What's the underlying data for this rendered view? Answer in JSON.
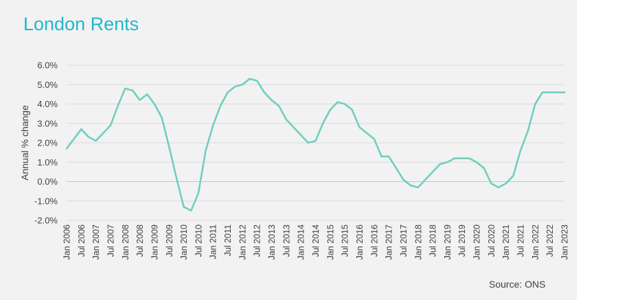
{
  "title": "London Rents",
  "source": "Source: ONS",
  "chart_data": {
    "type": "line",
    "title": "London Rents",
    "xlabel": "",
    "ylabel": "Annual % change",
    "ylim": [
      -2.0,
      6.0
    ],
    "yticks": [
      "6.0%",
      "5.0%",
      "4.0%",
      "3.0%",
      "2.0%",
      "1.0%",
      "0.0%",
      "-1.0%",
      "-2.0%"
    ],
    "ytick_values": [
      6,
      5,
      4,
      3,
      2,
      1,
      0,
      -1,
      -2
    ],
    "xticks": [
      "Jan 2006",
      "Jul 2006",
      "Jan 2007",
      "Jul 2007",
      "Jan 2008",
      "Jul 2008",
      "Jan 2009",
      "Jul 2009",
      "Jan 2010",
      "Jul 2010",
      "Jan 2011",
      "Jul 2011",
      "Jan 2012",
      "Jul 2012",
      "Jan 2013",
      "Jul 2013",
      "Jan 2014",
      "Jul 2014",
      "Jan 2015",
      "Jul 2015",
      "Jan 2016",
      "Jul 2016",
      "Jan 2017",
      "Jul 2017",
      "Jan 2018",
      "Jul 2018",
      "Jan 2019",
      "Jul 2019",
      "Jan 2020",
      "Jul 2020",
      "Jan 2021",
      "Jul 2021",
      "Jan 2022",
      "Jul 2022",
      "Jan 2023"
    ],
    "grid": "horizontal",
    "line_color": "#6fcfbf",
    "series": [
      {
        "name": "",
        "x": [
          "2006-01",
          "2006-04",
          "2006-07",
          "2006-10",
          "2007-01",
          "2007-04",
          "2007-07",
          "2007-10",
          "2008-01",
          "2008-04",
          "2008-07",
          "2008-10",
          "2009-01",
          "2009-04",
          "2009-07",
          "2009-10",
          "2010-01",
          "2010-04",
          "2010-07",
          "2010-10",
          "2011-01",
          "2011-04",
          "2011-07",
          "2011-10",
          "2012-01",
          "2012-04",
          "2012-07",
          "2012-10",
          "2013-01",
          "2013-04",
          "2013-07",
          "2013-10",
          "2014-01",
          "2014-04",
          "2014-07",
          "2014-10",
          "2015-01",
          "2015-04",
          "2015-07",
          "2015-10",
          "2016-01",
          "2016-04",
          "2016-07",
          "2016-10",
          "2017-01",
          "2017-04",
          "2017-07",
          "2017-10",
          "2018-01",
          "2018-04",
          "2018-07",
          "2018-10",
          "2019-01",
          "2019-04",
          "2019-07",
          "2019-10",
          "2020-01",
          "2020-04",
          "2020-07",
          "2020-10",
          "2021-01",
          "2021-04",
          "2021-07",
          "2021-10",
          "2022-01",
          "2022-04",
          "2022-07",
          "2022-10",
          "2023-01"
        ],
        "values": [
          1.7,
          2.2,
          2.7,
          2.3,
          2.1,
          2.5,
          2.9,
          3.9,
          4.8,
          4.7,
          4.2,
          4.5,
          4.0,
          3.3,
          1.8,
          0.2,
          -1.3,
          -1.5,
          -0.6,
          1.6,
          2.9,
          3.9,
          4.6,
          4.9,
          5.0,
          5.3,
          5.2,
          4.6,
          4.2,
          3.9,
          3.2,
          2.8,
          2.4,
          2.0,
          2.1,
          3.0,
          3.7,
          4.1,
          4.0,
          3.7,
          2.8,
          2.5,
          2.2,
          1.3,
          1.3,
          0.7,
          0.1,
          -0.2,
          -0.3,
          0.1,
          0.5,
          0.9,
          1.0,
          1.2,
          1.2,
          1.2,
          1.0,
          0.7,
          -0.1,
          -0.3,
          -0.1,
          0.3,
          1.6,
          2.6,
          4.0,
          4.6,
          4.6,
          4.6,
          4.6
        ]
      }
    ]
  }
}
